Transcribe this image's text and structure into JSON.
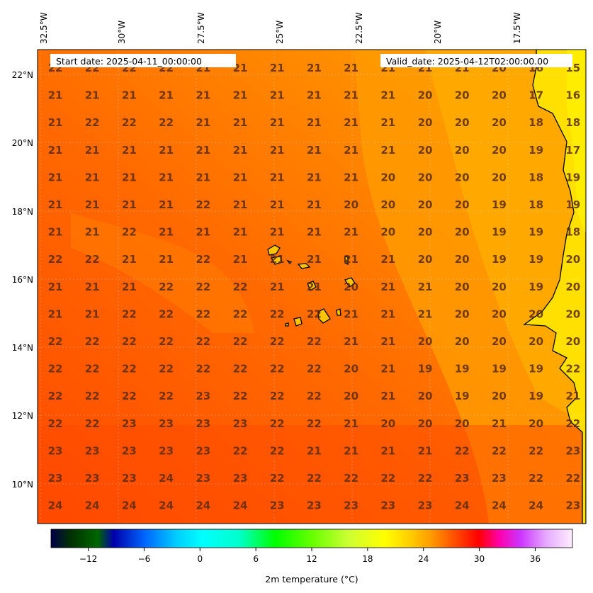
{
  "header": {
    "start_date": "Start date: 2025-04-11_00:00:00",
    "valid_date": "Valid_date: 2025-04-12T02:00:00.00"
  },
  "longitude_labels": [
    "32.5°W",
    "30°W",
    "27.5°W",
    "25°W",
    "22.5°W",
    "20°W",
    "17.5°W"
  ],
  "latitude_labels": [
    "22°N",
    "20°N",
    "18°N",
    "16°N",
    "14°N",
    "12°N",
    "10°N"
  ],
  "colorbar": {
    "title": "2m temperature ($^\\circ$C)",
    "title_display": "2m temperature (°C)",
    "range": [
      -16,
      40
    ],
    "ticks": [
      "−12",
      "−6",
      "0",
      "6",
      "12",
      "18",
      "24",
      "30",
      "36"
    ],
    "tick_values": [
      -12,
      -6,
      0,
      6,
      12,
      18,
      24,
      30,
      36
    ]
  },
  "map": {
    "extent_lon": [
      -32.9,
      -15.3
    ],
    "extent_lat": [
      8.9,
      22.8
    ],
    "colors": {
      "ocean_warm": "#ff6a00",
      "ocean_cool": "#ff9a00",
      "land": "#ffd000",
      "coast": "#000000"
    }
  },
  "station_values": [
    [
      "22",
      "22",
      "22",
      "22",
      "21",
      "21",
      "21",
      "21",
      "21",
      "21",
      "21",
      "21",
      "20",
      "16",
      "15"
    ],
    [
      "21",
      "21",
      "21",
      "21",
      "21",
      "21",
      "21",
      "21",
      "21",
      "21",
      "20",
      "20",
      "20",
      "17",
      "16"
    ],
    [
      "21",
      "22",
      "22",
      "22",
      "21",
      "21",
      "21",
      "21",
      "21",
      "21",
      "20",
      "20",
      "20",
      "18",
      "18"
    ],
    [
      "21",
      "21",
      "21",
      "21",
      "21",
      "21",
      "21",
      "21",
      "21",
      "21",
      "20",
      "20",
      "20",
      "19",
      "17"
    ],
    [
      "21",
      "21",
      "21",
      "21",
      "21",
      "21",
      "21",
      "21",
      "21",
      "20",
      "20",
      "20",
      "20",
      "18",
      "19"
    ],
    [
      "21",
      "21",
      "21",
      "21",
      "22",
      "21",
      "21",
      "21",
      "20",
      "20",
      "20",
      "20",
      "19",
      "18",
      "19"
    ],
    [
      "21",
      "21",
      "22",
      "21",
      "21",
      "21",
      "21",
      "21",
      "21",
      "20",
      "20",
      "20",
      "19",
      "19",
      "18"
    ],
    [
      "22",
      "22",
      "21",
      "21",
      "22",
      "21",
      "21",
      "21",
      "21",
      "21",
      "20",
      "20",
      "19",
      "19",
      "20"
    ],
    [
      "21",
      "21",
      "21",
      "22",
      "22",
      "22",
      "21",
      "21",
      "20",
      "21",
      "21",
      "20",
      "20",
      "19",
      "20"
    ],
    [
      "21",
      "21",
      "22",
      "22",
      "22",
      "22",
      "22",
      "22",
      "21",
      "21",
      "21",
      "20",
      "20",
      "20",
      "20"
    ],
    [
      "22",
      "22",
      "22",
      "22",
      "22",
      "22",
      "22",
      "22",
      "21",
      "21",
      "20",
      "20",
      "20",
      "20",
      "20"
    ],
    [
      "22",
      "22",
      "22",
      "22",
      "22",
      "22",
      "22",
      "22",
      "20",
      "21",
      "19",
      "19",
      "19",
      "19",
      "22"
    ],
    [
      "22",
      "22",
      "22",
      "22",
      "23",
      "22",
      "22",
      "22",
      "20",
      "21",
      "20",
      "19",
      "20",
      "19",
      "21"
    ],
    [
      "22",
      "22",
      "23",
      "23",
      "23",
      "23",
      "22",
      "22",
      "21",
      "20",
      "20",
      "20",
      "21",
      "20",
      "22"
    ],
    [
      "23",
      "23",
      "23",
      "23",
      "23",
      "22",
      "22",
      "21",
      "21",
      "21",
      "21",
      "22",
      "22",
      "22",
      "23"
    ],
    [
      "23",
      "23",
      "23",
      "24",
      "23",
      "23",
      "22",
      "22",
      "22",
      "22",
      "22",
      "23",
      "23",
      "22",
      "22"
    ],
    [
      "24",
      "24",
      "24",
      "24",
      "24",
      "24",
      "23",
      "23",
      "23",
      "23",
      "23",
      "24",
      "24",
      "24",
      "23"
    ]
  ]
}
